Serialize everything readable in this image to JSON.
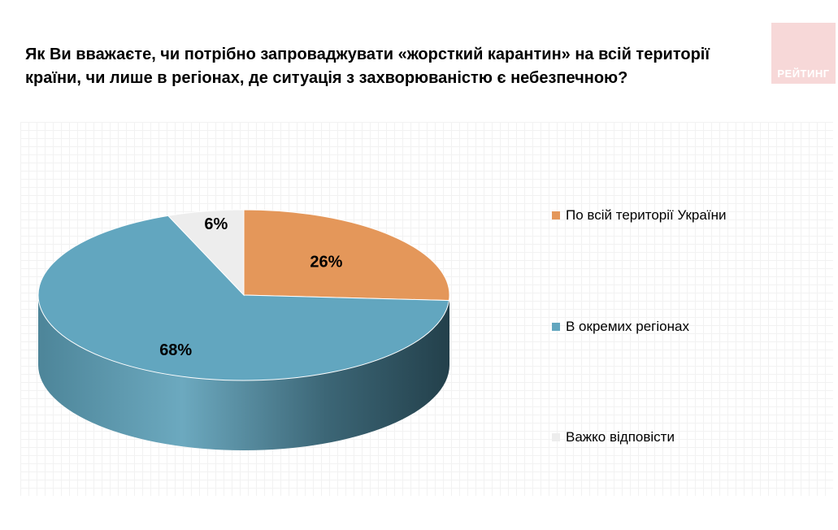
{
  "title_lines": [
    "Як Ви вважаєте, чи потрібно запроваджувати «жорсткий карантин» на всій території",
    "країни, чи лише в регіонах, де ситуація з захворюваністю є небезпечною?"
  ],
  "logo_text": "РЕЙТИНГ",
  "chart_data": {
    "type": "pie",
    "title": "Як Ви вважаєте, чи потрібно запроваджувати «жорсткий карантин» на всій території країни, чи лише в регіонах, де ситуація з захворюваністю є небезпечною?",
    "categories": [
      "По всій території України",
      "В окремих регіонах",
      "Важко відповісти"
    ],
    "values": [
      26,
      68,
      6
    ],
    "labels": [
      "26%",
      "68%",
      "6%"
    ],
    "unit": "%",
    "colors": [
      "#E4975A",
      "#62A6BF",
      "#EDEDED"
    ],
    "legend_position": "right",
    "three_d": true
  }
}
